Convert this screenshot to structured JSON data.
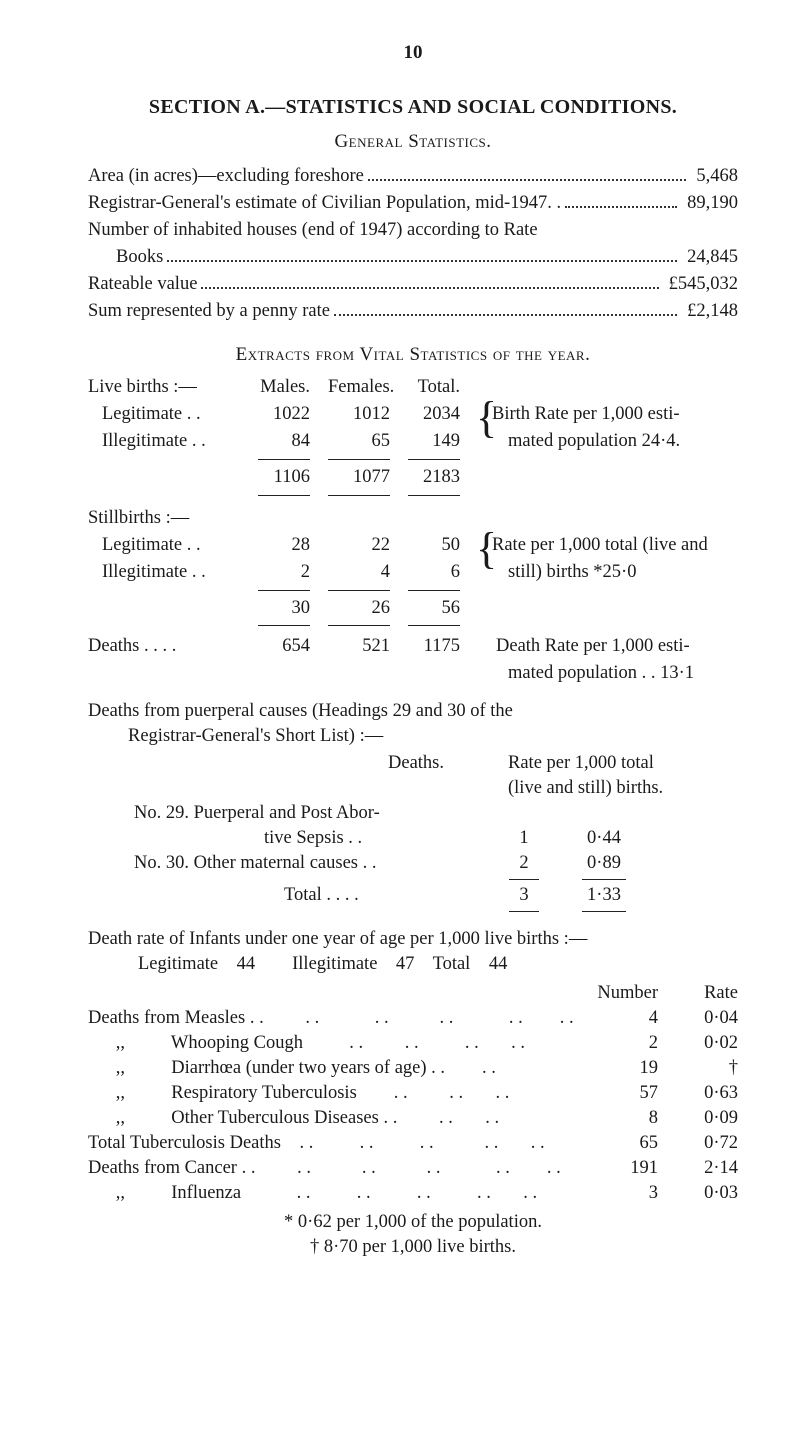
{
  "pagenum": "10",
  "title": "SECTION A.—STATISTICS AND SOCIAL CONDITIONS.",
  "subtitle": "General Statistics.",
  "general_stats": {
    "rows": [
      {
        "label": "Area (in acres)—excluding foreshore",
        "value": "5,468",
        "indent": false
      },
      {
        "label": "Registrar-General's estimate of Civilian Population, mid-1947. .",
        "value": "89,190",
        "indent": false
      },
      {
        "label": "Number of inhabited houses (end of 1947) according to Rate",
        "value": "",
        "indent": false,
        "nodots": true
      },
      {
        "label": "Books",
        "value": "24,845",
        "indent": true
      },
      {
        "label": "Rateable value",
        "value": "£545,032",
        "indent": false
      },
      {
        "label": "Sum represented by a penny rate",
        "value": "£2,148",
        "indent": false
      }
    ]
  },
  "extracts_title": "Extracts from Vital Statistics of the year.",
  "vital": {
    "hdr_lbl": "Live births :—",
    "hdr_m": "Males.",
    "hdr_f": "Females.",
    "hdr_t": "Total.",
    "legit": {
      "lbl": "Legitimate     . .",
      "m": "1022",
      "f": "1012",
      "t": "2034"
    },
    "illegit": {
      "lbl": "Illegitimate    . .",
      "m": "84",
      "f": "65",
      "t": "149"
    },
    "sub1": {
      "m": "1106",
      "f": "1077",
      "t": "2183"
    },
    "birth_note1": "Birth  Rate  per  1,000  esti-",
    "birth_note2": "mated  population  24·4.",
    "still_hdr": "Stillbirths :—",
    "still_legit": {
      "lbl": "Legitimate     . .",
      "m": "28",
      "f": "22",
      "t": "50"
    },
    "still_illegit": {
      "lbl": "Illegitimate  . .",
      "m": "2",
      "f": "4",
      "t": "6"
    },
    "sub2": {
      "m": "30",
      "f": "26",
      "t": "56"
    },
    "still_note1": "Rate per 1,000 total (live and",
    "still_note2": "still) births  *25·0",
    "deaths": {
      "lbl": "Deaths . .        . .",
      "m": "654",
      "f": "521",
      "t": "1175"
    },
    "deaths_note1": "Death  Rate  per  1,000  esti-",
    "deaths_note2": "mated  population  . .   13·1"
  },
  "puerperal": {
    "intro1": "Deaths from puerperal causes (Headings 29 and 30 of the",
    "intro2": "Registrar-General's Short List) :—",
    "col_d": "Deaths.",
    "col_r1": "Rate per 1,000 total",
    "col_r2": "(live and still) births.",
    "r29a": "No. 29.   Puerperal and Post Abor-",
    "r29b": "tive Sepsis              . .",
    "r29n": "1",
    "r29r": "0·44",
    "r30": "No. 30.   Other maternal causes   . .",
    "r30n": "2",
    "r30r": "0·89",
    "total_lbl": "Total . .          . .",
    "total_n": "3",
    "total_r": "1·33"
  },
  "infants": {
    "intro": "Death rate of Infants under one year of age per 1,000 live births :—",
    "line2": "Legitimate    44        Illegitimate    47    Total    44",
    "hdr_num": "Number",
    "hdr_rate": "Rate",
    "rows": [
      {
        "label": "Deaths from Measles . .         . .            . .           . .            . .        . .",
        "num": "4",
        "rate": "0·04"
      },
      {
        "label": "      ,,          Whooping Cough          . .         . .          . .       . .",
        "num": "2",
        "rate": "0·02"
      },
      {
        "label": "      ,,          Diarrhœa (under two years of age) . .        . .",
        "num": "19",
        "rate": "†"
      },
      {
        "label": "      ,,          Respiratory Tuberculosis        . .         . .       . .",
        "num": "57",
        "rate": "0·63"
      },
      {
        "label": "      ,,          Other Tuberculous Diseases . .         . .       . .",
        "num": "8",
        "rate": "0·09"
      },
      {
        "label": "Total Tuberculosis Deaths    . .          . .          . .           . .       . .",
        "num": "65",
        "rate": "0·72"
      },
      {
        "label": "Deaths from Cancer . .         . .           . .           . .            . .        . .",
        "num": "191",
        "rate": "2·14"
      },
      {
        "label": "      ,,          Influenza            . .          . .          . .          . .       . .",
        "num": "3",
        "rate": "0·03"
      }
    ],
    "foot1": "* 0·62 per 1,000 of the population.",
    "foot2": "† 8·70 per 1,000 live births."
  }
}
